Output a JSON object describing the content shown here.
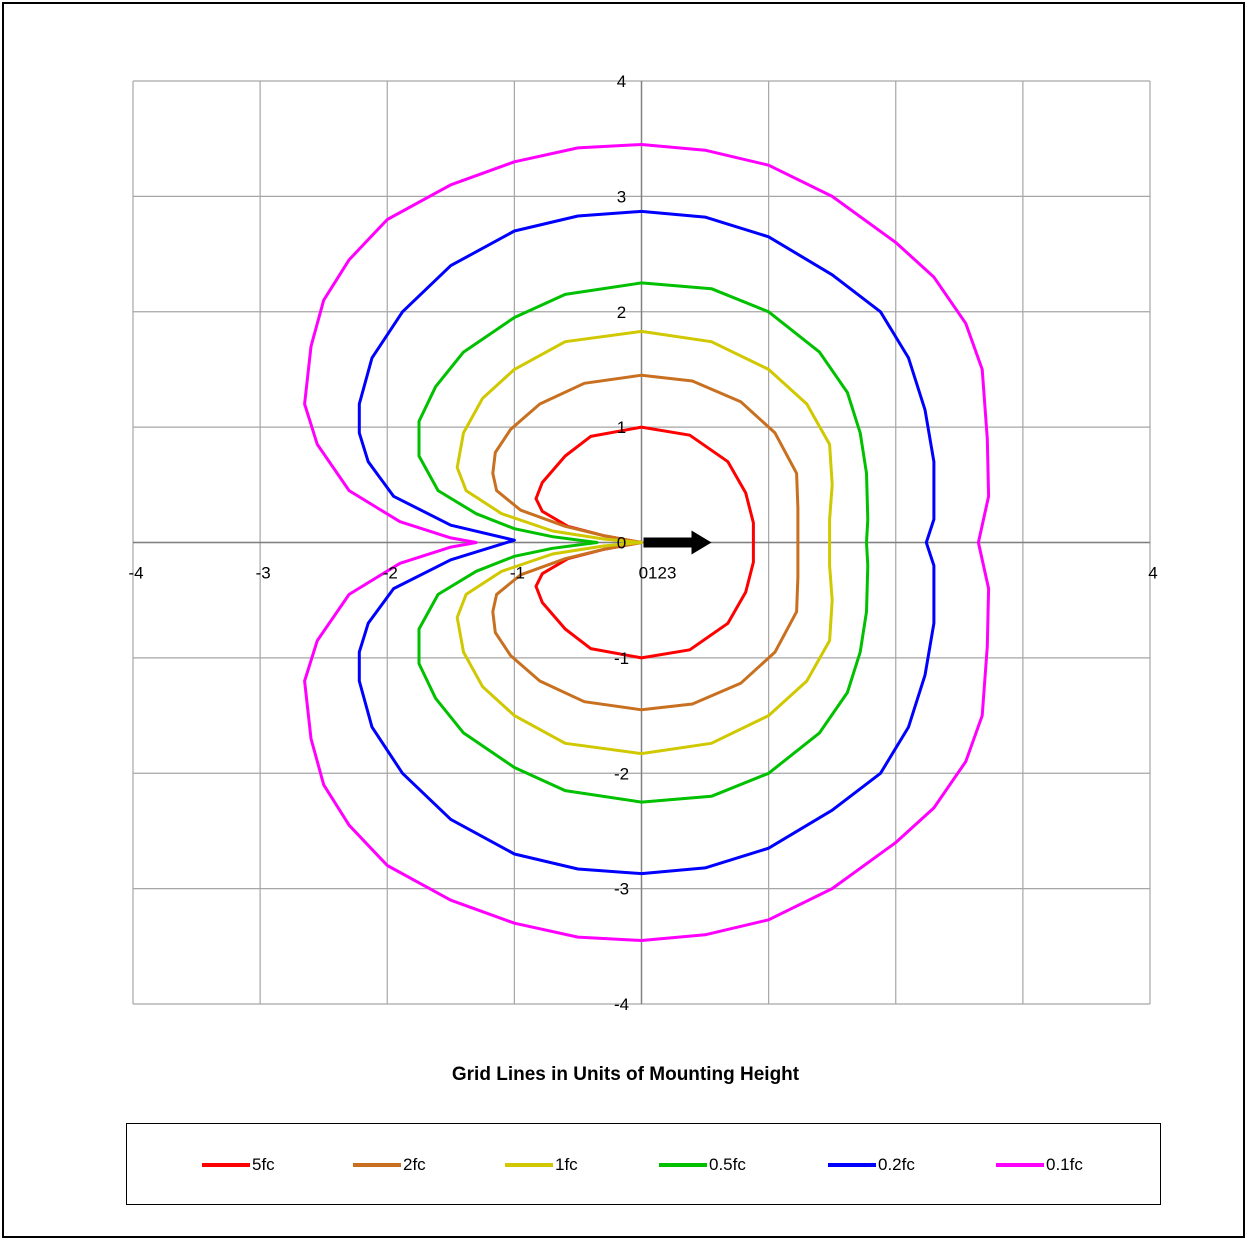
{
  "chart_data": {
    "type": "line",
    "title": "",
    "xlabel": "Grid Lines in Units of Mounting Height",
    "ylabel": "",
    "xlim": [
      -4,
      4
    ],
    "ylim": [
      -4,
      4
    ],
    "grid": true,
    "legend_position": "bottom",
    "x_ticks": [
      "-4",
      "-3",
      "-2",
      "-1",
      "0123",
      "4"
    ],
    "y_ticks": [
      "4",
      "3",
      "2",
      "1",
      "0",
      "-1",
      "-2",
      "-3",
      "-4"
    ],
    "annotation": "arrow pointing in +x direction from origin",
    "series": [
      {
        "name": "5fc",
        "color": "#ff0000",
        "points": [
          [
            0.0,
            1.0
          ],
          [
            -0.4,
            0.92
          ],
          [
            -0.6,
            0.75
          ],
          [
            -0.78,
            0.52
          ],
          [
            -0.83,
            0.38
          ],
          [
            -0.78,
            0.27
          ],
          [
            -0.58,
            0.14
          ],
          [
            -0.3,
            0.06
          ],
          [
            -0.1,
            0.02
          ],
          [
            0.0,
            0.0
          ],
          [
            -0.1,
            -0.02
          ],
          [
            -0.3,
            -0.06
          ],
          [
            -0.58,
            -0.14
          ],
          [
            -0.78,
            -0.27
          ],
          [
            -0.83,
            -0.38
          ],
          [
            -0.78,
            -0.52
          ],
          [
            -0.6,
            -0.75
          ],
          [
            -0.4,
            -0.92
          ],
          [
            0.0,
            -1.0
          ],
          [
            0.38,
            -0.93
          ],
          [
            0.68,
            -0.7
          ],
          [
            0.82,
            -0.43
          ],
          [
            0.88,
            -0.17
          ],
          [
            0.88,
            0.0
          ],
          [
            0.88,
            0.17
          ],
          [
            0.82,
            0.43
          ],
          [
            0.68,
            0.7
          ],
          [
            0.38,
            0.93
          ],
          [
            0.0,
            1.0
          ]
        ]
      },
      {
        "name": "2fc",
        "color": "#c87020",
        "points": [
          [
            0.0,
            1.45
          ],
          [
            -0.45,
            1.38
          ],
          [
            -0.8,
            1.2
          ],
          [
            -1.03,
            0.98
          ],
          [
            -1.15,
            0.78
          ],
          [
            -1.17,
            0.6
          ],
          [
            -1.14,
            0.45
          ],
          [
            -0.95,
            0.28
          ],
          [
            -0.6,
            0.14
          ],
          [
            -0.3,
            0.06
          ],
          [
            0.0,
            0.0
          ],
          [
            -0.3,
            -0.06
          ],
          [
            -0.6,
            -0.14
          ],
          [
            -0.95,
            -0.28
          ],
          [
            -1.14,
            -0.45
          ],
          [
            -1.17,
            -0.6
          ],
          [
            -1.15,
            -0.78
          ],
          [
            -1.03,
            -0.98
          ],
          [
            -0.8,
            -1.2
          ],
          [
            -0.45,
            -1.38
          ],
          [
            0.0,
            -1.45
          ],
          [
            0.4,
            -1.4
          ],
          [
            0.78,
            -1.22
          ],
          [
            1.05,
            -0.95
          ],
          [
            1.22,
            -0.6
          ],
          [
            1.23,
            -0.3
          ],
          [
            1.23,
            0.0
          ],
          [
            1.23,
            0.3
          ],
          [
            1.22,
            0.6
          ],
          [
            1.05,
            0.95
          ],
          [
            0.78,
            1.22
          ],
          [
            0.4,
            1.4
          ],
          [
            0.0,
            1.45
          ]
        ]
      },
      {
        "name": "1fc",
        "color": "#d0c800",
        "points": [
          [
            0.0,
            1.83
          ],
          [
            -0.6,
            1.74
          ],
          [
            -1.0,
            1.5
          ],
          [
            -1.25,
            1.25
          ],
          [
            -1.4,
            0.95
          ],
          [
            -1.45,
            0.65
          ],
          [
            -1.38,
            0.45
          ],
          [
            -1.1,
            0.25
          ],
          [
            -0.7,
            0.1
          ],
          [
            -0.3,
            0.03
          ],
          [
            0.0,
            0.0
          ],
          [
            -0.3,
            -0.03
          ],
          [
            -0.7,
            -0.1
          ],
          [
            -1.1,
            -0.25
          ],
          [
            -1.38,
            -0.45
          ],
          [
            -1.45,
            -0.65
          ],
          [
            -1.4,
            -0.95
          ],
          [
            -1.25,
            -1.25
          ],
          [
            -1.0,
            -1.5
          ],
          [
            -0.6,
            -1.74
          ],
          [
            0.0,
            -1.83
          ],
          [
            0.55,
            -1.74
          ],
          [
            1.0,
            -1.5
          ],
          [
            1.3,
            -1.2
          ],
          [
            1.48,
            -0.85
          ],
          [
            1.5,
            -0.5
          ],
          [
            1.48,
            -0.2
          ],
          [
            1.48,
            0.0
          ],
          [
            1.48,
            0.2
          ],
          [
            1.5,
            0.5
          ],
          [
            1.48,
            0.85
          ],
          [
            1.3,
            1.2
          ],
          [
            1.0,
            1.5
          ],
          [
            0.55,
            1.74
          ],
          [
            0.0,
            1.83
          ]
        ]
      },
      {
        "name": "0.5fc",
        "color": "#00c000",
        "points": [
          [
            0.0,
            2.25
          ],
          [
            -0.6,
            2.15
          ],
          [
            -1.0,
            1.95
          ],
          [
            -1.4,
            1.65
          ],
          [
            -1.62,
            1.35
          ],
          [
            -1.75,
            1.05
          ],
          [
            -1.75,
            0.75
          ],
          [
            -1.6,
            0.45
          ],
          [
            -1.3,
            0.25
          ],
          [
            -1.0,
            0.12
          ],
          [
            -0.7,
            0.05
          ],
          [
            -0.35,
            0.0
          ],
          [
            -0.7,
            -0.05
          ],
          [
            -1.0,
            -0.12
          ],
          [
            -1.3,
            -0.25
          ],
          [
            -1.6,
            -0.45
          ],
          [
            -1.75,
            -0.75
          ],
          [
            -1.75,
            -1.05
          ],
          [
            -1.62,
            -1.35
          ],
          [
            -1.4,
            -1.65
          ],
          [
            -1.0,
            -1.95
          ],
          [
            -0.6,
            -2.15
          ],
          [
            0.0,
            -2.25
          ],
          [
            0.55,
            -2.2
          ],
          [
            1.0,
            -2.0
          ],
          [
            1.4,
            -1.65
          ],
          [
            1.62,
            -1.3
          ],
          [
            1.72,
            -0.95
          ],
          [
            1.77,
            -0.6
          ],
          [
            1.78,
            -0.2
          ],
          [
            1.77,
            0.0
          ],
          [
            1.78,
            0.2
          ],
          [
            1.77,
            0.6
          ],
          [
            1.72,
            0.95
          ],
          [
            1.62,
            1.3
          ],
          [
            1.4,
            1.65
          ],
          [
            1.0,
            2.0
          ],
          [
            0.55,
            2.2
          ],
          [
            0.0,
            2.25
          ]
        ]
      },
      {
        "name": "0.2fc",
        "color": "#0000ff",
        "points": [
          [
            0.0,
            2.87
          ],
          [
            -0.5,
            2.83
          ],
          [
            -1.0,
            2.7
          ],
          [
            -1.5,
            2.4
          ],
          [
            -1.88,
            2.0
          ],
          [
            -2.12,
            1.6
          ],
          [
            -2.22,
            1.2
          ],
          [
            -2.22,
            0.95
          ],
          [
            -2.15,
            0.7
          ],
          [
            -1.95,
            0.4
          ],
          [
            -1.5,
            0.15
          ],
          [
            -1.0,
            0.02
          ],
          [
            -1.5,
            -0.15
          ],
          [
            -1.95,
            -0.4
          ],
          [
            -2.15,
            -0.7
          ],
          [
            -2.22,
            -0.95
          ],
          [
            -2.22,
            -1.2
          ],
          [
            -2.12,
            -1.6
          ],
          [
            -1.88,
            -2.0
          ],
          [
            -1.5,
            -2.4
          ],
          [
            -1.0,
            -2.7
          ],
          [
            -0.5,
            -2.83
          ],
          [
            0.0,
            -2.87
          ],
          [
            0.5,
            -2.82
          ],
          [
            1.0,
            -2.65
          ],
          [
            1.5,
            -2.32
          ],
          [
            1.88,
            -2.0
          ],
          [
            2.1,
            -1.6
          ],
          [
            2.23,
            -1.15
          ],
          [
            2.3,
            -0.7
          ],
          [
            2.3,
            -0.2
          ],
          [
            2.24,
            0.0
          ],
          [
            2.3,
            0.2
          ],
          [
            2.3,
            0.7
          ],
          [
            2.23,
            1.15
          ],
          [
            2.1,
            1.6
          ],
          [
            1.88,
            2.0
          ],
          [
            1.5,
            2.32
          ],
          [
            1.0,
            2.65
          ],
          [
            0.5,
            2.82
          ],
          [
            0.0,
            2.87
          ]
        ]
      },
      {
        "name": "0.1fc",
        "color": "#ff00ff",
        "points": [
          [
            0.0,
            3.45
          ],
          [
            -0.5,
            3.42
          ],
          [
            -1.0,
            3.3
          ],
          [
            -1.5,
            3.1
          ],
          [
            -2.0,
            2.8
          ],
          [
            -2.3,
            2.45
          ],
          [
            -2.5,
            2.1
          ],
          [
            -2.6,
            1.7
          ],
          [
            -2.65,
            1.2
          ],
          [
            -2.55,
            0.85
          ],
          [
            -2.3,
            0.45
          ],
          [
            -1.9,
            0.18
          ],
          [
            -1.5,
            0.04
          ],
          [
            -1.3,
            0.0
          ],
          [
            -1.5,
            -0.04
          ],
          [
            -1.9,
            -0.18
          ],
          [
            -2.3,
            -0.45
          ],
          [
            -2.55,
            -0.85
          ],
          [
            -2.65,
            -1.2
          ],
          [
            -2.6,
            -1.7
          ],
          [
            -2.5,
            -2.1
          ],
          [
            -2.3,
            -2.45
          ],
          [
            -2.0,
            -2.8
          ],
          [
            -1.5,
            -3.1
          ],
          [
            -1.0,
            -3.3
          ],
          [
            -0.5,
            -3.42
          ],
          [
            0.0,
            -3.45
          ],
          [
            0.5,
            -3.4
          ],
          [
            1.0,
            -3.27
          ],
          [
            1.5,
            -3.0
          ],
          [
            2.0,
            -2.6
          ],
          [
            2.3,
            -2.3
          ],
          [
            2.55,
            -1.9
          ],
          [
            2.68,
            -1.5
          ],
          [
            2.72,
            -0.9
          ],
          [
            2.73,
            -0.4
          ],
          [
            2.65,
            0.0
          ],
          [
            2.73,
            0.4
          ],
          [
            2.72,
            0.9
          ],
          [
            2.68,
            1.5
          ],
          [
            2.55,
            1.9
          ],
          [
            2.3,
            2.3
          ],
          [
            2.0,
            2.6
          ],
          [
            1.5,
            3.0
          ],
          [
            1.0,
            3.27
          ],
          [
            0.5,
            3.4
          ],
          [
            0.0,
            3.45
          ]
        ]
      }
    ]
  }
}
